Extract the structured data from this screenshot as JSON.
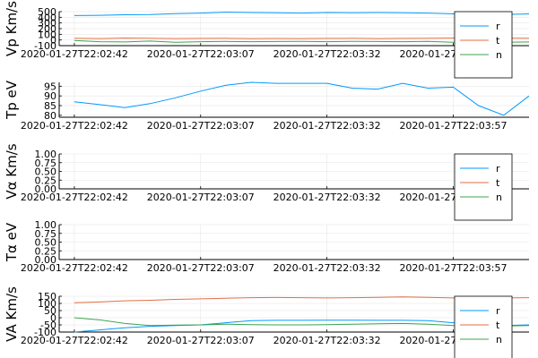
{
  "chart_data": [
    {
      "type": "line",
      "ylabel": "Vp Km/s",
      "ylim": [
        -100,
        500
      ],
      "yticks": [
        -100,
        0,
        100,
        200,
        300,
        400,
        500
      ],
      "xtick_labels": [
        "2020-01-27T22:02:42",
        "2020-01-27T22:03:07",
        "2020-01-27T22:03:32",
        "2020-01-27T22:03:57"
      ],
      "xticks_s": [
        0,
        25,
        50,
        75
      ],
      "xlim_s": [
        -3,
        90
      ],
      "x_s": [
        0,
        5,
        10,
        15,
        20,
        25,
        30,
        35,
        40,
        45,
        50,
        55,
        60,
        65,
        70,
        75,
        80,
        85,
        90
      ],
      "grid": true,
      "legend": "bottom-right",
      "series": [
        {
          "name": "r",
          "color": "#009AFA",
          "values": [
            430,
            435,
            445,
            450,
            465,
            475,
            490,
            485,
            480,
            475,
            485,
            480,
            485,
            480,
            475,
            460,
            445,
            450,
            460
          ]
        },
        {
          "name": "t",
          "color": "#E26F46",
          "values": [
            30,
            25,
            35,
            30,
            25,
            28,
            30,
            25,
            27,
            25,
            28,
            30,
            25,
            28,
            30,
            35,
            30,
            32,
            30
          ]
        },
        {
          "name": "n",
          "color": "#3EA44E",
          "values": [
            -10,
            -30,
            -35,
            -20,
            -40,
            -30,
            -25,
            -30,
            -28,
            -25,
            -30,
            -25,
            -28,
            -30,
            -25,
            -40,
            -45,
            -40,
            -35
          ]
        }
      ]
    },
    {
      "type": "line",
      "ylabel": "Tp eV",
      "ylim": [
        79,
        97
      ],
      "yticks": [
        80,
        85,
        90,
        95
      ],
      "xtick_labels": [
        "2020-01-27T22:02:42",
        "2020-01-27T22:03:07",
        "2020-01-27T22:03:32",
        "2020-01-27T22:03:57"
      ],
      "xticks_s": [
        0,
        25,
        50,
        75
      ],
      "xlim_s": [
        -3,
        90
      ],
      "x_s": [
        0,
        5,
        10,
        15,
        20,
        25,
        30,
        35,
        40,
        45,
        50,
        55,
        60,
        65,
        70,
        75,
        80,
        85,
        90
      ],
      "grid": true,
      "legend": "",
      "series": [
        {
          "name": "",
          "color": "#009AFA",
          "values": [
            87,
            85.5,
            84,
            86,
            89,
            92.5,
            95.5,
            97,
            96.5,
            96.5,
            96.5,
            94,
            93.5,
            96.5,
            94,
            94.5,
            85,
            80,
            90
          ]
        }
      ]
    },
    {
      "type": "line",
      "ylabel": "Vα Km/s",
      "ylim": [
        0,
        1
      ],
      "yticks": [
        0.0,
        0.25,
        0.5,
        0.75,
        1.0
      ],
      "ytick_labels": [
        "0.00",
        "0.25",
        "0.50",
        "0.75",
        "1.00"
      ],
      "xtick_labels": [
        "2020-01-27T22:02:42",
        "2020-01-27T22:03:07",
        "2020-01-27T22:03:32",
        "2020-01-27T22:03:57"
      ],
      "xticks_s": [
        0,
        25,
        50,
        75
      ],
      "xlim_s": [
        -3,
        90
      ],
      "grid": true,
      "legend": "bottom-right",
      "series": [
        {
          "name": "r",
          "color": "#009AFA",
          "values": []
        },
        {
          "name": "t",
          "color": "#E26F46",
          "values": []
        },
        {
          "name": "n",
          "color": "#3EA44E",
          "values": []
        }
      ]
    },
    {
      "type": "line",
      "ylabel": "Tα eV",
      "ylim": [
        0,
        1
      ],
      "yticks": [
        0.0,
        0.25,
        0.5,
        0.75,
        1.0
      ],
      "ytick_labels": [
        "0.00",
        "0.25",
        "0.50",
        "0.75",
        "1.00"
      ],
      "xtick_labels": [
        "2020-01-27T22:02:42",
        "2020-01-27T22:03:07",
        "2020-01-27T22:03:32",
        "2020-01-27T22:03:57"
      ],
      "xticks_s": [
        0,
        25,
        50,
        75
      ],
      "xlim_s": [
        -3,
        90
      ],
      "grid": true,
      "legend": "",
      "series": []
    },
    {
      "type": "line",
      "ylabel": "VA Km/s",
      "ylim": [
        -100,
        150
      ],
      "yticks": [
        -100,
        -50,
        0,
        50,
        100,
        150
      ],
      "xtick_labels": [
        "2020-01-27T22:02:42",
        "2020-01-27T22:03:07",
        "2020-01-27T22:03:32",
        "2020-01-27T22:03:57"
      ],
      "xticks_s": [
        0,
        25,
        50,
        75
      ],
      "xlim_s": [
        -3,
        90
      ],
      "x_s": [
        0,
        5,
        10,
        15,
        20,
        25,
        30,
        35,
        40,
        45,
        50,
        55,
        60,
        65,
        70,
        75,
        80,
        85,
        90
      ],
      "grid": true,
      "legend": "bottom-right",
      "series": [
        {
          "name": "r",
          "color": "#009AFA",
          "values": [
            -100,
            -85,
            -70,
            -60,
            -55,
            -50,
            -35,
            -20,
            -18,
            -18,
            -17,
            -17,
            -18,
            -18,
            -20,
            -35,
            -50,
            -55,
            -50
          ]
        },
        {
          "name": "t",
          "color": "#E26F46",
          "values": [
            105,
            110,
            118,
            122,
            128,
            132,
            136,
            140,
            141,
            140,
            138,
            140,
            142,
            145,
            142,
            138,
            135,
            138,
            140
          ]
        },
        {
          "name": "n",
          "color": "#3EA44E",
          "values": [
            0,
            -15,
            -40,
            -55,
            -52,
            -50,
            -45,
            -48,
            -50,
            -50,
            -48,
            -45,
            -42,
            -40,
            -45,
            -55,
            -60,
            -58,
            -55
          ]
        }
      ]
    }
  ]
}
